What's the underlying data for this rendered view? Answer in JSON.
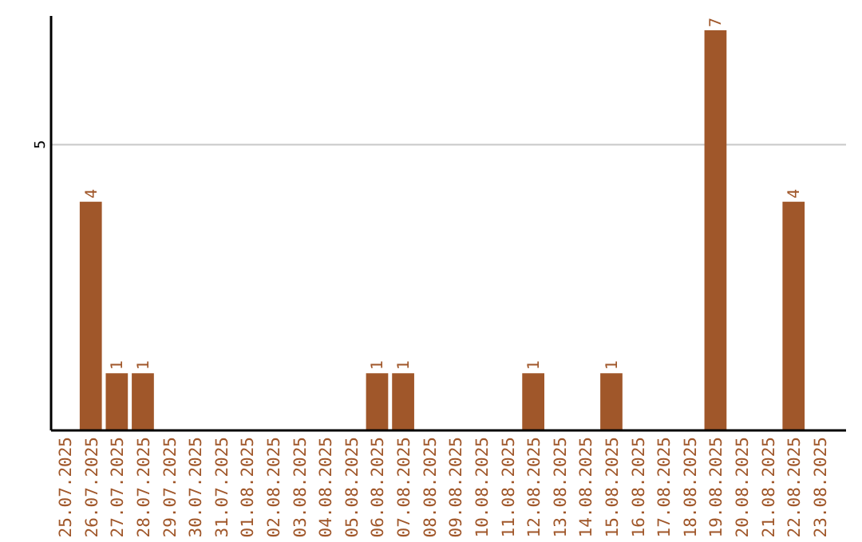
{
  "chart_data": {
    "type": "bar",
    "categories": [
      "25.07.2025",
      "26.07.2025",
      "27.07.2025",
      "28.07.2025",
      "29.07.2025",
      "30.07.2025",
      "31.07.2025",
      "01.08.2025",
      "02.08.2025",
      "03.08.2025",
      "04.08.2025",
      "05.08.2025",
      "06.08.2025",
      "07.08.2025",
      "08.08.2025",
      "09.08.2025",
      "10.08.2025",
      "11.08.2025",
      "12.08.2025",
      "13.08.2025",
      "14.08.2025",
      "15.08.2025",
      "16.08.2025",
      "17.08.2025",
      "18.08.2025",
      "19.08.2025",
      "20.08.2025",
      "21.08.2025",
      "22.08.2025",
      "23.08.2025"
    ],
    "values": [
      0,
      4,
      1,
      1,
      0,
      0,
      0,
      0,
      0,
      0,
      0,
      0,
      1,
      1,
      0,
      0,
      0,
      0,
      1,
      0,
      0,
      1,
      0,
      0,
      0,
      7,
      0,
      0,
      4,
      0
    ],
    "value_labels": [
      null,
      "4",
      "1",
      "1",
      null,
      null,
      null,
      null,
      null,
      null,
      null,
      null,
      "1",
      "1",
      null,
      null,
      null,
      null,
      "1",
      null,
      null,
      "1",
      null,
      null,
      null,
      "7",
      null,
      null,
      "4",
      null
    ],
    "color": "#a0572a",
    "ylim": [
      0,
      7.25
    ],
    "yticks": [
      5
    ],
    "grid": "y"
  }
}
